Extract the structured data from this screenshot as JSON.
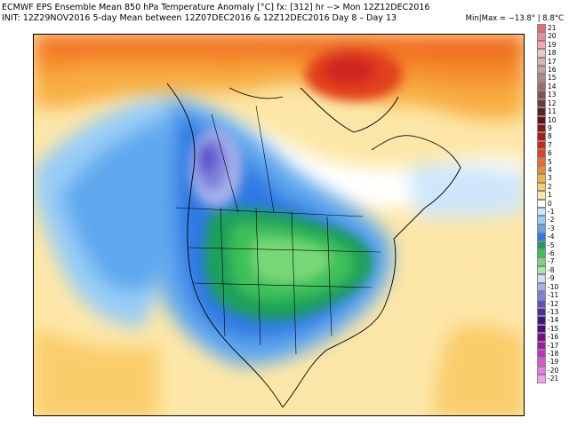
{
  "header": {
    "line1": "ECMWF EPS Ensemble Mean 850 hPa Temperature Anomaly [°C] fx: [312] hr --> Mon 12Z12DEC2016",
    "line2": "INIT: 12Z29NOV2016 5-day Mean between 12Z07DEC2016 & 12Z12DEC2016   Day 8 – Day 13",
    "minmax": "Min|Max = −13.8° | 8.8°C"
  },
  "legend": {
    "items": [
      {
        "label": "21",
        "color": "#e8677a"
      },
      {
        "label": "20",
        "color": "#f18a98"
      },
      {
        "label": "19",
        "color": "#f5a8b4"
      },
      {
        "label": "18",
        "color": "#eec3c7"
      },
      {
        "label": "17",
        "color": "#dbb5b8"
      },
      {
        "label": "16",
        "color": "#c8a0a2"
      },
      {
        "label": "15",
        "color": "#b28588"
      },
      {
        "label": "14",
        "color": "#9d6b6e"
      },
      {
        "label": "13",
        "color": "#855255"
      },
      {
        "label": "12",
        "color": "#6c3a3d"
      },
      {
        "label": "11",
        "color": "#5a2226"
      },
      {
        "label": "10",
        "color": "#6a0f12"
      },
      {
        "label": "9",
        "color": "#8b1317"
      },
      {
        "label": "8",
        "color": "#ad1a1c"
      },
      {
        "label": "7",
        "color": "#cf2520"
      },
      {
        "label": "6",
        "color": "#e2401f"
      },
      {
        "label": "5",
        "color": "#ef6a22"
      },
      {
        "label": "4",
        "color": "#f58c2c"
      },
      {
        "label": "3",
        "color": "#f8ad42"
      },
      {
        "label": "2",
        "color": "#fbcc6b"
      },
      {
        "label": "1",
        "color": "#fde7a8"
      },
      {
        "label": "0",
        "color": "#ffffff"
      },
      {
        "label": "-1",
        "color": "#cfe7fb"
      },
      {
        "label": "-2",
        "color": "#98cdf7"
      },
      {
        "label": "-3",
        "color": "#5ea8ef"
      },
      {
        "label": "-4",
        "color": "#2f79e2"
      },
      {
        "label": "-5",
        "color": "#1aa05a"
      },
      {
        "label": "-6",
        "color": "#3ec05a"
      },
      {
        "label": "-7",
        "color": "#78d878"
      },
      {
        "label": "-8",
        "color": "#aee6a9"
      },
      {
        "label": "-9",
        "color": "#d3dbf3"
      },
      {
        "label": "-10",
        "color": "#a5b0ea"
      },
      {
        "label": "-11",
        "color": "#7b80dc"
      },
      {
        "label": "-12",
        "color": "#5a4fc8"
      },
      {
        "label": "-13",
        "color": "#4b2aa3"
      },
      {
        "label": "-14",
        "color": "#3a1584"
      },
      {
        "label": "-15",
        "color": "#4e0c7e"
      },
      {
        "label": "-16",
        "color": "#7a0c8e"
      },
      {
        "label": "-17",
        "color": "#a316a8"
      },
      {
        "label": "-18",
        "color": "#c52cc0"
      },
      {
        "label": "-19",
        "color": "#de4fd6"
      },
      {
        "label": "-20",
        "color": "#ec7be5"
      },
      {
        "label": "-21",
        "color": "#f3a3ee"
      }
    ]
  }
}
